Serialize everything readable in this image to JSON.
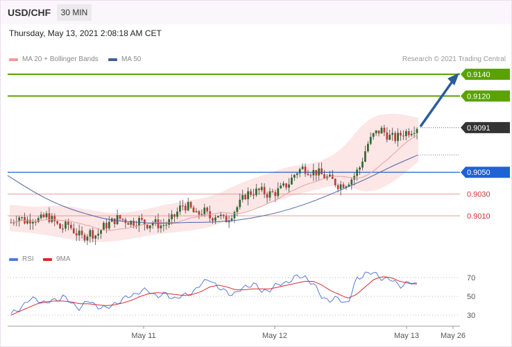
{
  "header": {
    "symbol": "USD/CHF",
    "timeframe": "30 MIN",
    "datetime": "Thursday, May 13, 2021 2:08:18 AM CET"
  },
  "legend": {
    "ma20_label": "MA 20 + Bollinger Bands",
    "ma50_label": "MA 50",
    "source": "Research © 2021 Trading Central",
    "rsi_label": "RSI",
    "ma9_label": "9MA"
  },
  "colors": {
    "green": "#5aa200",
    "blue": "#1f62d6",
    "red_level": "#e89898",
    "red_text": "#d03030",
    "candle_up": "#2e6b2e",
    "candle_down": "#c43b3b",
    "band_fill": "#fbdede",
    "ma20": "#e8a0a0",
    "ma50": "#4a64a8",
    "rsi": "#5878d8",
    "ma9": "#d82a2a",
    "arrow": "#2a5c9c",
    "last_price_tag": "#333333"
  },
  "chart_data": [
    {
      "type": "candlestick",
      "title": "USD/CHF 30 MIN",
      "ylim": [
        0.8985,
        0.915
      ],
      "x_ticks": [
        "May 11",
        "May 12",
        "May 13",
        "May 26"
      ],
      "price_levels": [
        {
          "value": 0.914,
          "label": "0.9140",
          "kind": "resistance",
          "color": "#5aa200",
          "style": "tag"
        },
        {
          "value": 0.912,
          "label": "0.9120",
          "kind": "resistance",
          "color": "#5aa200",
          "style": "tag"
        },
        {
          "value": 0.9091,
          "label": "0.9091",
          "kind": "last-price",
          "color": "#333333",
          "style": "tag"
        },
        {
          "value": 0.905,
          "label": "0.9050",
          "kind": "pivot",
          "color": "#1f62d6",
          "style": "tag"
        },
        {
          "value": 0.903,
          "label": "0.9030",
          "kind": "support",
          "color": "#d03030",
          "style": "text"
        },
        {
          "value": 0.901,
          "label": "0.9010",
          "kind": "support",
          "color": "#d03030",
          "style": "text"
        }
      ],
      "price_path": [
        0.9004,
        0.901,
        0.9005,
        0.9008,
        0.9006,
        0.901,
        0.9005,
        0.8998,
        0.9002,
        0.8995,
        0.899,
        0.8995,
        0.8992,
        0.9,
        0.9004,
        0.9008,
        0.9006,
        0.9004,
        0.9006,
        0.9002,
        0.9004,
        0.9001,
        0.9003,
        0.901,
        0.902,
        0.9018,
        0.901,
        0.9015,
        0.9008,
        0.9012,
        0.9005,
        0.9012,
        0.902,
        0.903,
        0.9032,
        0.9033,
        0.903,
        0.9031,
        0.9035,
        0.904,
        0.905,
        0.9054,
        0.9051,
        0.905,
        0.9046,
        0.9043,
        0.9038,
        0.904,
        0.9045,
        0.9055,
        0.9075,
        0.9085,
        0.9089,
        0.9083,
        0.9081,
        0.9086,
        0.9088,
        0.9092
      ],
      "ma50_path": [
        0.9047,
        0.9032,
        0.902,
        0.9012,
        0.9006,
        0.9004,
        0.9003,
        0.9004,
        0.9004,
        0.9006,
        0.901,
        0.9016,
        0.9024,
        0.9034,
        0.9044,
        0.9056,
        0.9066
      ],
      "bollinger_upper": [
        0.902,
        0.9018,
        0.902,
        0.9016,
        0.9012,
        0.9014,
        0.902,
        0.9024,
        0.9028,
        0.904,
        0.9048,
        0.9056,
        0.9058,
        0.907,
        0.91,
        0.9105,
        0.91
      ],
      "bollinger_lower": [
        0.8996,
        0.8994,
        0.899,
        0.8986,
        0.8986,
        0.899,
        0.8994,
        0.8996,
        0.9,
        0.9012,
        0.902,
        0.9028,
        0.9034,
        0.904,
        0.903,
        0.904,
        0.906
      ],
      "projection_target": 0.914
    },
    {
      "type": "line",
      "title": "RSI",
      "ylim": [
        20,
        80
      ],
      "y_ticks": [
        70,
        50,
        30
      ],
      "series": [
        {
          "name": "RSI",
          "color": "#5878d8",
          "values": [
            30,
            38,
            45,
            48,
            42,
            46,
            50,
            42,
            38,
            45,
            40,
            36,
            43,
            46,
            52,
            55,
            56,
            50,
            52,
            48,
            50,
            55,
            62,
            70,
            58,
            55,
            52,
            60,
            64,
            55,
            58,
            62,
            66,
            70,
            72,
            62,
            50,
            45,
            48,
            42,
            68,
            75,
            74,
            70,
            67,
            62,
            64,
            63
          ]
        },
        {
          "name": "9MA",
          "color": "#d82a2a",
          "values": [
            30,
            34,
            38,
            42,
            44,
            45,
            45,
            44,
            42,
            42,
            41,
            40,
            41,
            43,
            46,
            50,
            53,
            54,
            53,
            52,
            51,
            52,
            55,
            60,
            62,
            60,
            57,
            57,
            58,
            58,
            58,
            60,
            62,
            64,
            66,
            66,
            62,
            56,
            52,
            48,
            52,
            60,
            68,
            71,
            70,
            66,
            64,
            63
          ]
        }
      ]
    }
  ]
}
